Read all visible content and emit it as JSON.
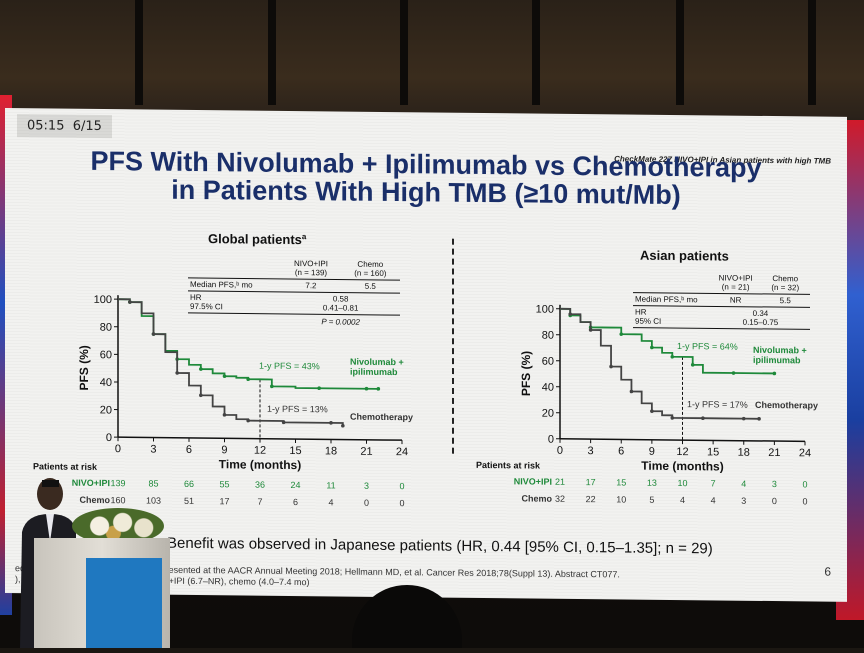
{
  "overlay": {
    "time": "05:15",
    "page": "6/15"
  },
  "slide": {
    "tag": "CheckMate 227 NIVO+IPI in Asian patients with high TMB",
    "title_line1": "PFS With Nivolumab + Ipilimumab vs Chemotherapy",
    "title_line2": "in Patients With High TMB (≥10 mut/Mb)",
    "footer_main": "Benefit was observed in Japanese patients (HR, 0.44 [95% CI, 0.15–1.35]; n = 29)",
    "footnote1": "ed 2018;378:2093–2104; previously presented at the AACR Annual Meeting 2018; Hellmann MD, et al. Cancer Res 2018;78(Suppl 13). Abstract CT077.",
    "footnote2": "), chemo (4.4–5.8 mo). °95% CI: NIVO+IPI (6.7–NR), chemo (4.0–7.4 mo)",
    "slide_number": "6"
  },
  "chart_data": [
    {
      "type": "line",
      "title": "Global patients",
      "title_sup": "a",
      "xlabel": "Time (months)",
      "ylabel": "PFS (%)",
      "xlim": [
        0,
        24
      ],
      "ylim": [
        0,
        100
      ],
      "x_ticks": [
        "0",
        "3",
        "6",
        "9",
        "12",
        "15",
        "18",
        "21",
        "24"
      ],
      "y_ticks": [
        "0",
        "20",
        "40",
        "60",
        "80",
        "100"
      ],
      "table": {
        "col1_header_line1": "NIVO+IPI",
        "col1_header_line2": "(n = 139)",
        "col2_header_line1": "Chemo",
        "col2_header_line2": "(n = 160)",
        "row1_label": "Median PFS,ᵇ mo",
        "row1_v1": "7.2",
        "row1_v2": "5.5",
        "row2_label": "HR",
        "row2_v": "0.58",
        "row3_label": "97.5% CI",
        "row3_v": "0.41–0.81",
        "row4_v": "P = 0.0002"
      },
      "annotations": {
        "ref_line_x": 12,
        "nivo_label": "1-y PFS = 43%",
        "chemo_label": "1-y PFS = 13%"
      },
      "series": [
        {
          "name": "Nivolumab + ipilimumab",
          "color": "#1e8a3a",
          "points": [
            [
              0,
              100
            ],
            [
              1,
              98
            ],
            [
              2,
              88
            ],
            [
              3,
              75
            ],
            [
              4,
              63
            ],
            [
              5,
              57
            ],
            [
              6,
              53
            ],
            [
              7,
              50
            ],
            [
              8,
              47
            ],
            [
              9,
              45
            ],
            [
              10,
              44
            ],
            [
              11,
              43
            ],
            [
              12,
              43
            ],
            [
              13,
              38
            ],
            [
              15,
              37
            ],
            [
              17,
              37
            ],
            [
              19,
              37
            ],
            [
              21,
              37
            ],
            [
              22,
              37
            ]
          ]
        },
        {
          "name": "Chemotherapy",
          "color": "#444444",
          "points": [
            [
              0,
              100
            ],
            [
              1,
              98
            ],
            [
              2,
              90
            ],
            [
              3,
              75
            ],
            [
              4,
              62
            ],
            [
              5,
              47
            ],
            [
              6,
              38
            ],
            [
              7,
              31
            ],
            [
              8,
              23
            ],
            [
              9,
              17
            ],
            [
              10,
              14
            ],
            [
              11,
              13
            ],
            [
              12,
              13
            ],
            [
              14,
              12
            ],
            [
              16,
              12
            ],
            [
              18,
              12
            ],
            [
              19,
              10
            ]
          ]
        }
      ],
      "risk": {
        "header": "Patients at risk",
        "rows": [
          {
            "label": "NIVO+IPI",
            "values": [
              "139",
              "85",
              "66",
              "55",
              "36",
              "24",
              "11",
              "3",
              "0"
            ]
          },
          {
            "label": "Chemo",
            "values": [
              "160",
              "103",
              "51",
              "17",
              "7",
              "6",
              "4",
              "0",
              "0"
            ]
          }
        ]
      }
    },
    {
      "type": "line",
      "title": "Asian patients",
      "xlabel": "Time (months)",
      "ylabel": "PFS (%)",
      "xlim": [
        0,
        24
      ],
      "ylim": [
        0,
        100
      ],
      "x_ticks": [
        "0",
        "3",
        "6",
        "9",
        "12",
        "15",
        "18",
        "21",
        "24"
      ],
      "y_ticks": [
        "0",
        "20",
        "40",
        "60",
        "80",
        "100"
      ],
      "table": {
        "col1_header_line1": "NIVO+IPI",
        "col1_header_line2": "(n = 21)",
        "col2_header_line1": "Chemo",
        "col2_header_line2": "(n = 32)",
        "row1_label": "Median PFS,ᵇ mo",
        "row1_v1": "NR",
        "row1_v2": "5.5",
        "row2_label": "HR",
        "row2_v": "0.34",
        "row3_label": "95% CI",
        "row3_v": "0.15–0.75"
      },
      "annotations": {
        "ref_line_x": 12,
        "nivo_label": "1-y PFS = 64%",
        "chemo_label": "1-y PFS = 17%"
      },
      "series": [
        {
          "name": "Nivolumab + ipilimumab",
          "color": "#1e8a3a",
          "points": [
            [
              0,
              100
            ],
            [
              1,
              95
            ],
            [
              2,
              90
            ],
            [
              3,
              86
            ],
            [
              5,
              86
            ],
            [
              6,
              81
            ],
            [
              8,
              76
            ],
            [
              9,
              71
            ],
            [
              10,
              67
            ],
            [
              11,
              64
            ],
            [
              12,
              64
            ],
            [
              13,
              58
            ],
            [
              14,
              52
            ],
            [
              17,
              52
            ],
            [
              19,
              52
            ],
            [
              21,
              52
            ]
          ]
        },
        {
          "name": "Chemotherapy",
          "color": "#444444",
          "points": [
            [
              0,
              100
            ],
            [
              1,
              96
            ],
            [
              2,
              90
            ],
            [
              3,
              84
            ],
            [
              4,
              72
            ],
            [
              5,
              56
            ],
            [
              6,
              46
            ],
            [
              7,
              37
            ],
            [
              8,
              28
            ],
            [
              9,
              22
            ],
            [
              10,
              19
            ],
            [
              11,
              17
            ],
            [
              12,
              17
            ],
            [
              14,
              17
            ],
            [
              16,
              17
            ],
            [
              18,
              17
            ],
            [
              19.5,
              17
            ]
          ]
        }
      ],
      "risk": {
        "header": "Patients at risk",
        "rows": [
          {
            "label": "NIVO+IPI",
            "values": [
              "21",
              "17",
              "15",
              "13",
              "10",
              "7",
              "4",
              "3",
              "0"
            ]
          },
          {
            "label": "Chemo",
            "values": [
              "32",
              "22",
              "10",
              "5",
              "4",
              "4",
              "3",
              "0",
              "0"
            ]
          }
        ]
      }
    }
  ]
}
